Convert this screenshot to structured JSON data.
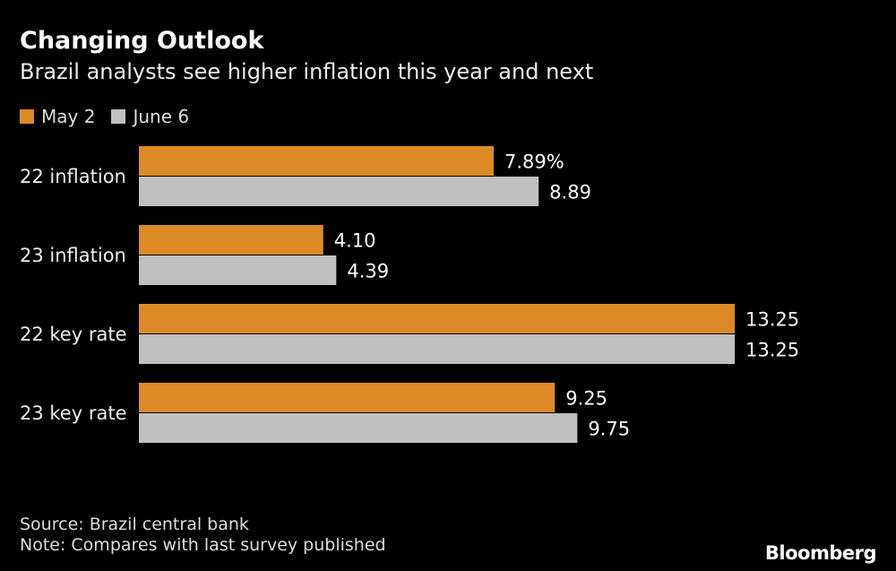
{
  "chart_data": {
    "type": "bar",
    "orientation": "horizontal",
    "title": "Changing Outlook",
    "subtitle": "Brazil analysts see higher inflation this year and next",
    "categories": [
      "22 inflation",
      "23 inflation",
      "22 key rate",
      "23 key rate"
    ],
    "series": [
      {
        "name": "May 2",
        "color": "#dc8a27",
        "values": [
          7.89,
          4.1,
          13.25,
          9.25
        ],
        "labels": [
          "7.89%",
          "4.10",
          "13.25",
          "9.25"
        ]
      },
      {
        "name": "June 6",
        "color": "#c0c0c0",
        "values": [
          8.89,
          4.39,
          13.25,
          9.75
        ],
        "labels": [
          "8.89",
          "4.39",
          "13.25",
          "9.75"
        ]
      }
    ],
    "xlim": [
      0,
      13.25
    ],
    "grid": false,
    "legend": "top-left"
  },
  "footer": {
    "source": "Source: Brazil central bank",
    "note": "Note: Compares with last survey published",
    "logo": "Bloomberg"
  }
}
